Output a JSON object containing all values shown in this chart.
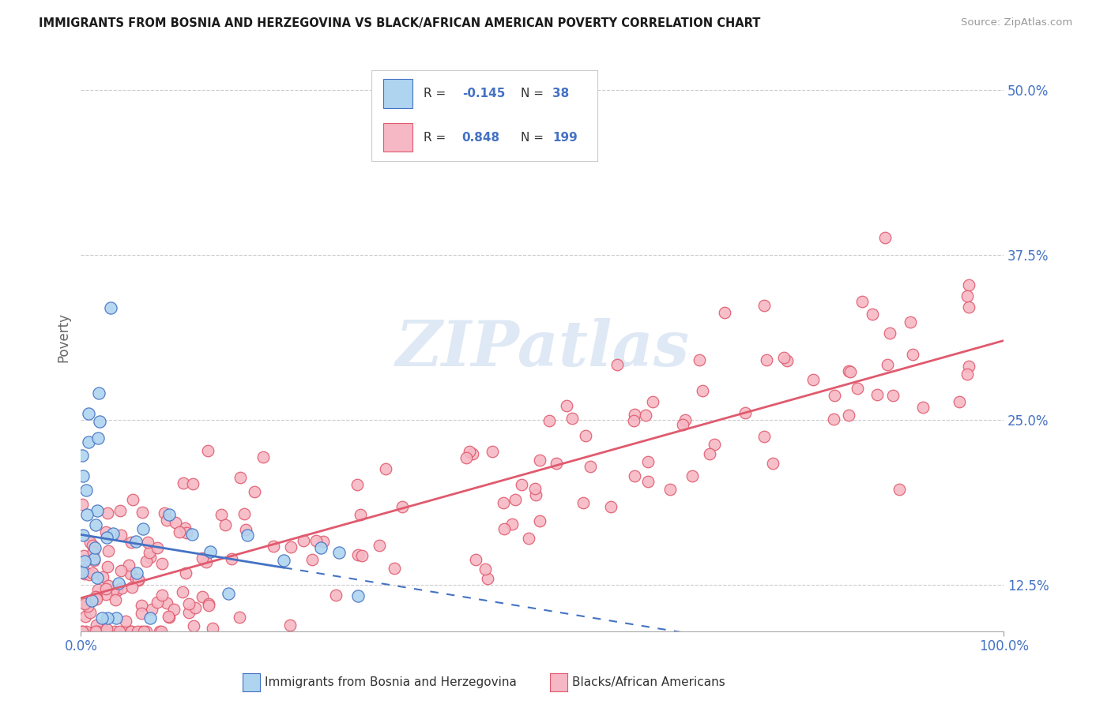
{
  "title": "IMMIGRANTS FROM BOSNIA AND HERZEGOVINA VS BLACK/AFRICAN AMERICAN POVERTY CORRELATION CHART",
  "source": "Source: ZipAtlas.com",
  "ylabel": "Poverty",
  "ytick_labels": [
    "12.5%",
    "25.0%",
    "37.5%",
    "50.0%"
  ],
  "ytick_values": [
    0.125,
    0.25,
    0.375,
    0.5
  ],
  "legend_entries": [
    {
      "label": "Immigrants from Bosnia and Herzegovina",
      "R": "-0.145",
      "N": "38",
      "color": "#aed4f0",
      "line_color": "#4472c4"
    },
    {
      "label": "Blacks/African Americans",
      "R": "0.848",
      "N": "199",
      "color": "#f5b8c4",
      "line_color": "#e05a6e"
    }
  ],
  "watermark": "ZIPatlas",
  "xlim": [
    0.0,
    1.0
  ],
  "ylim": [
    0.09,
    0.535
  ]
}
